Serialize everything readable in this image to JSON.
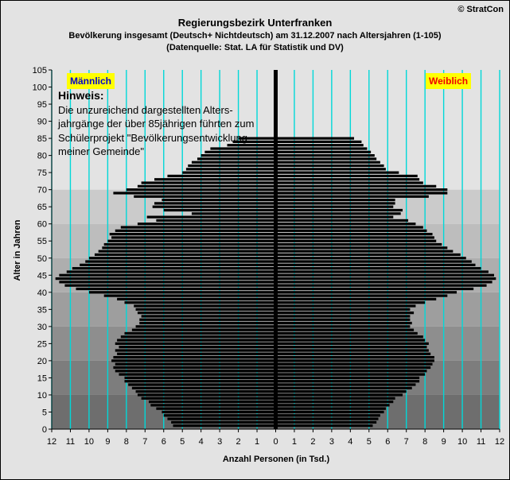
{
  "header": {
    "title": "Regierungsbezirk Unterfranken",
    "subtitle": "Bevölkerung  insgesamt (Deutsch+ Nichtdeutsch) am 31.12.2007 nach Altersjahren (1-105)",
    "source": "(Datenquelle: Stat. LA für Statistik und DV)",
    "copyright": "© StratCon"
  },
  "legend": {
    "male": "Männlich",
    "female": "Weiblich",
    "male_color": "#0000cc",
    "female_color": "#ee0000",
    "badge_color": "#ffff00"
  },
  "note": {
    "title": "Hinweis:",
    "lines": [
      "Die unzureichend dargestellten Alters-",
      "jahrgänge der über 85jährigen führten zum",
      "Schülerprojekt \"Bevölkerungsentwicklung",
      "meiner Gemeinde\""
    ]
  },
  "chart_data": {
    "type": "bar",
    "orientation": "horizontal",
    "subtype": "population pyramid",
    "xlabel": "Anzahl Personen (in Tsd.)",
    "ylabel": "Alter in Jahren",
    "xlim": [
      -12,
      12
    ],
    "x_ticks": [
      "12",
      "11",
      "10",
      "9",
      "8",
      "7",
      "6",
      "5",
      "4",
      "3",
      "2",
      "1",
      "0",
      "1",
      "2",
      "3",
      "4",
      "5",
      "6",
      "7",
      "8",
      "9",
      "10",
      "11",
      "12"
    ],
    "ylim": [
      0,
      105
    ],
    "y_ticks": [
      0,
      5,
      10,
      15,
      20,
      25,
      30,
      35,
      40,
      45,
      50,
      55,
      60,
      65,
      70,
      75,
      80,
      85,
      90,
      95,
      100,
      105
    ],
    "grid": true,
    "grid_color": "#00d8d8",
    "bar_color": "#000000",
    "ages": [
      1,
      2,
      3,
      4,
      5,
      6,
      7,
      8,
      9,
      10,
      11,
      12,
      13,
      14,
      15,
      16,
      17,
      18,
      19,
      20,
      21,
      22,
      23,
      24,
      25,
      26,
      27,
      28,
      29,
      30,
      31,
      32,
      33,
      34,
      35,
      36,
      37,
      38,
      39,
      40,
      41,
      42,
      43,
      44,
      45,
      46,
      47,
      48,
      49,
      50,
      51,
      52,
      53,
      54,
      55,
      56,
      57,
      58,
      59,
      60,
      61,
      62,
      63,
      64,
      65,
      66,
      67,
      68,
      69,
      70,
      71,
      72,
      73,
      74,
      75,
      76,
      77,
      78,
      79,
      80,
      81,
      82,
      83,
      84,
      85
    ],
    "series": [
      {
        "name": "Männlich",
        "values": [
          5.5,
          5.6,
          5.8,
          6.0,
          6.1,
          6.4,
          6.7,
          6.8,
          7.2,
          7.4,
          7.5,
          7.7,
          7.9,
          8.1,
          8.1,
          8.4,
          8.6,
          8.7,
          8.6,
          8.8,
          8.7,
          8.5,
          8.6,
          8.4,
          8.6,
          8.5,
          8.3,
          8.1,
          7.7,
          7.5,
          7.3,
          7.3,
          7.2,
          7.4,
          7.5,
          7.6,
          8.1,
          8.5,
          9.2,
          10.0,
          10.7,
          11.3,
          11.6,
          11.8,
          11.6,
          11.2,
          10.9,
          10.5,
          10.2,
          10.0,
          9.7,
          9.5,
          9.3,
          9.2,
          9.0,
          8.8,
          8.9,
          8.6,
          8.3,
          7.4,
          6.4,
          6.9,
          4.5,
          6.0,
          6.6,
          6.5,
          6.1,
          7.6,
          8.7,
          8.0,
          7.4,
          7.2,
          6.5,
          5.8,
          5.0,
          4.8,
          4.7,
          4.5,
          4.2,
          4.0,
          3.8,
          3.5,
          2.6,
          2.3,
          2.0
        ]
      },
      {
        "name": "Weiblich",
        "values": [
          5.2,
          5.4,
          5.5,
          5.6,
          5.8,
          5.9,
          6.1,
          6.3,
          6.4,
          6.8,
          7.0,
          7.3,
          7.5,
          7.7,
          7.7,
          8.0,
          8.1,
          8.3,
          8.4,
          8.5,
          8.5,
          8.3,
          8.2,
          8.1,
          8.2,
          8.0,
          7.9,
          7.6,
          7.4,
          7.2,
          7.3,
          7.2,
          7.2,
          7.4,
          7.2,
          7.5,
          8.0,
          8.6,
          9.2,
          9.7,
          10.6,
          11.3,
          11.6,
          11.8,
          11.7,
          11.4,
          11.0,
          10.7,
          10.5,
          10.2,
          9.9,
          9.5,
          9.2,
          8.9,
          8.6,
          8.5,
          8.4,
          8.1,
          7.9,
          7.5,
          7.1,
          6.3,
          6.7,
          6.8,
          6.3,
          6.4,
          6.4,
          8.2,
          9.2,
          9.2,
          8.6,
          7.9,
          7.7,
          7.6,
          6.6,
          5.9,
          5.8,
          5.6,
          5.4,
          5.3,
          5.1,
          4.9,
          4.7,
          4.6,
          4.2
        ]
      }
    ]
  }
}
